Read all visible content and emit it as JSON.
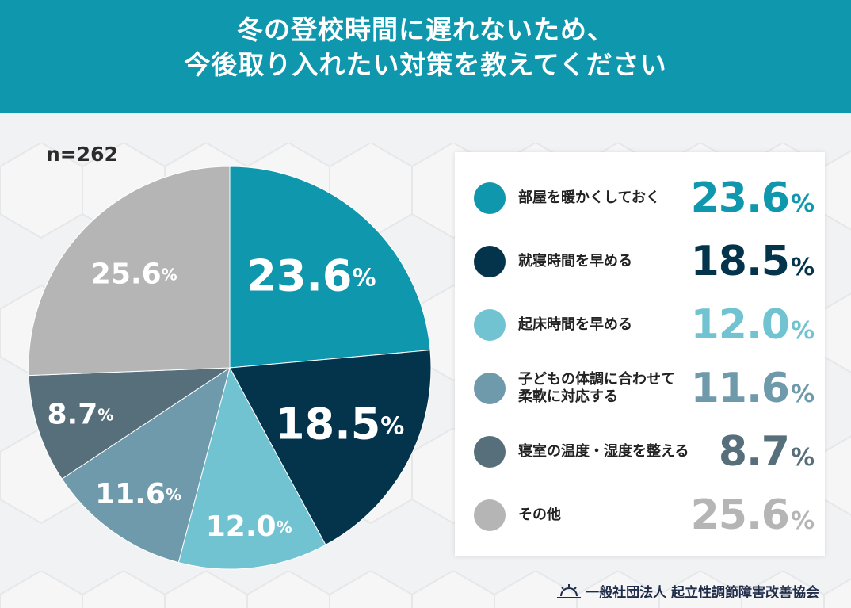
{
  "header": {
    "line1": "冬の登校時間に遅れないため、",
    "line2": "今後取り入れたい対策を教えてください"
  },
  "sample": "n=262",
  "footer": {
    "org": "一般社団法人 起立性調節障害改善協会"
  },
  "chart_data": {
    "type": "pie",
    "title": "冬の登校時間に遅れないため、今後取り入れたい対策を教えてください",
    "start_angle": "12 o'clock, clockwise",
    "slices": [
      {
        "label": "部屋を暖かくしておく",
        "value": 23.6,
        "display": "23.6",
        "color": "#0f97ad"
      },
      {
        "label": "就寝時間を早める",
        "value": 18.5,
        "display": "18.5",
        "color": "#04344c"
      },
      {
        "label": "起床時間を早める",
        "value": 12.0,
        "display": "12.0",
        "color": "#72c3d2"
      },
      {
        "label": "子どもの体調に合わせて\n柔軟に対応する",
        "value": 11.6,
        "display": "11.6",
        "color": "#6f9aab"
      },
      {
        "label": "寝室の温度・湿度を整える",
        "value": 8.7,
        "display": "8.7",
        "color": "#566f7b"
      },
      {
        "label": "その他",
        "value": 25.6,
        "display": "25.6",
        "color": "#b5b5b5"
      }
    ],
    "unit": "%"
  }
}
